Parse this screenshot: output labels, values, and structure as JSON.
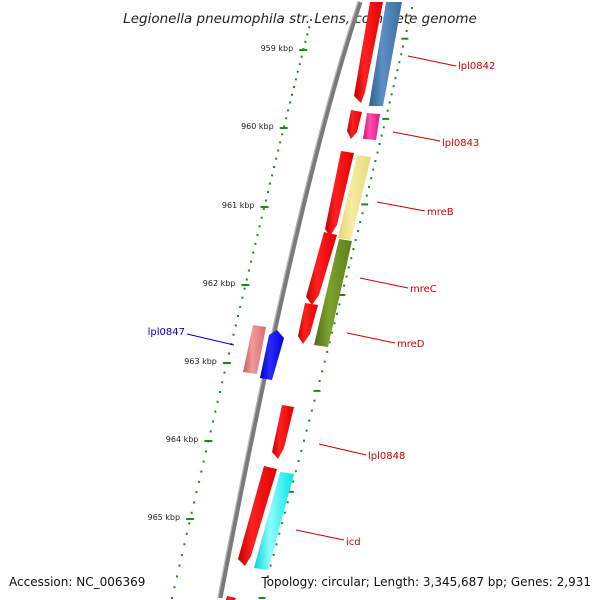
{
  "title": "Legionella pneumophila str. Lens, complete genome",
  "footer": {
    "accession": "Accession: NC_006369",
    "topology": "Topology: circular; Length: 3,345,687 bp; Genes: 2,931"
  },
  "ticks": [
    "959 kbp",
    "960 kbp",
    "961 kbp",
    "962 kbp",
    "963 kbp",
    "964 kbp",
    "965 kbp"
  ],
  "genes": [
    {
      "label": "lpl0842",
      "color": "#cc0000",
      "strand": "forward"
    },
    {
      "label": "lpl0843",
      "color": "#cc0000",
      "strand": "forward"
    },
    {
      "label": "mreB",
      "color": "#cc0000",
      "strand": "forward"
    },
    {
      "label": "mreC",
      "color": "#cc0000",
      "strand": "forward"
    },
    {
      "label": "mreD",
      "color": "#cc0000",
      "strand": "forward"
    },
    {
      "label": "lpl0847",
      "color": "#0000cc",
      "strand": "reverse"
    },
    {
      "label": "lpl0848",
      "color": "#cc0000",
      "strand": "forward"
    },
    {
      "label": "icd",
      "color": "#cc0000",
      "strand": "forward"
    }
  ],
  "colors": {
    "cds": "#ff0000",
    "cds_shadow": "#b00000",
    "backbone": "#7a7a7a",
    "ticks": "#1a8a1a",
    "cog_blue": "#4f82b8",
    "cog_magenta": "#ff1493",
    "cog_khaki": "#eee28a",
    "cog_olive": "#6b8e23",
    "cog_pink": "#e98080",
    "cog_cyan": "#00ffff",
    "reverse_cds": "#0000ff"
  }
}
